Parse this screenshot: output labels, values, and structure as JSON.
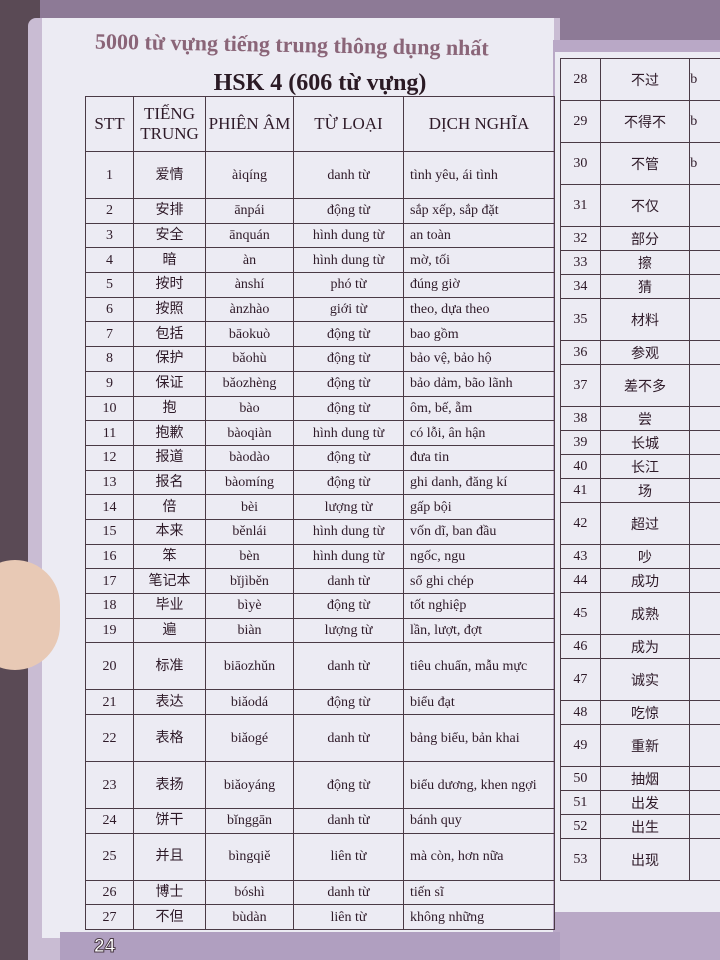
{
  "book_title": "5000 từ vựng tiếng trung thông dụng nhất",
  "section_title": "HSK 4 (606 từ vựng)",
  "headers": [
    "STT",
    "TIẾNG TRUNG",
    "PHIÊN ÂM",
    "TỪ LOẠI",
    "DỊCH NGHĨA"
  ],
  "rows": [
    [
      "1",
      "爱情",
      "àiqíng",
      "danh từ",
      "tình yêu, ái tình"
    ],
    [
      "2",
      "安排",
      "ānpái",
      "động từ",
      "sắp xếp, sắp đặt"
    ],
    [
      "3",
      "安全",
      "ānquán",
      "hình dung từ",
      "an toàn"
    ],
    [
      "4",
      "暗",
      "àn",
      "hình dung từ",
      "mờ, tối"
    ],
    [
      "5",
      "按时",
      "ànshí",
      "phó từ",
      "đúng giờ"
    ],
    [
      "6",
      "按照",
      "ànzhào",
      "giới từ",
      "theo, dựa theo"
    ],
    [
      "7",
      "包括",
      "bāokuò",
      "động từ",
      "bao gồm"
    ],
    [
      "8",
      "保护",
      "bǎohù",
      "động từ",
      "bảo vệ, bảo hộ"
    ],
    [
      "9",
      "保证",
      "bǎozhèng",
      "động từ",
      "bảo dảm, bão lãnh"
    ],
    [
      "10",
      "抱",
      "bào",
      "động từ",
      "ôm, bế, ẵm"
    ],
    [
      "11",
      "抱歉",
      "bàoqiàn",
      "hình dung từ",
      "có lỗi, ân hận"
    ],
    [
      "12",
      "报道",
      "bàodào",
      "động từ",
      "đưa tin"
    ],
    [
      "13",
      "报名",
      "bàomíng",
      "động từ",
      "ghi danh, đăng kí"
    ],
    [
      "14",
      "倍",
      "bèi",
      "lượng từ",
      "gấp bội"
    ],
    [
      "15",
      "本来",
      "běnlái",
      "hình dung từ",
      "vốn dĩ, ban đầu"
    ],
    [
      "16",
      "笨",
      "bèn",
      "hình dung từ",
      "ngốc, ngu"
    ],
    [
      "17",
      "笔记本",
      "bǐjìběn",
      "danh từ",
      "sổ ghi chép"
    ],
    [
      "18",
      "毕业",
      "bìyè",
      "động từ",
      "tốt nghiệp"
    ],
    [
      "19",
      "遍",
      "biàn",
      "lượng từ",
      "lần, lượt, đợt"
    ],
    [
      "20",
      "标准",
      "biāozhǔn",
      "danh từ",
      "tiêu chuẩn, mẫu mực"
    ],
    [
      "21",
      "表达",
      "biǎodá",
      "động từ",
      "biểu đạt"
    ],
    [
      "22",
      "表格",
      "biǎogé",
      "danh từ",
      "bảng biểu, bản khai"
    ],
    [
      "23",
      "表扬",
      "biǎoyáng",
      "động từ",
      "biểu dương, khen ngợi"
    ],
    [
      "24",
      "饼干",
      "bǐnggān",
      "danh từ",
      "bánh quy"
    ],
    [
      "25",
      "并且",
      "bìngqiě",
      "liên từ",
      "mà còn, hơn nữa"
    ],
    [
      "26",
      "博士",
      "bóshì",
      "danh từ",
      "tiến sĩ"
    ],
    [
      "27",
      "不但",
      "bùdàn",
      "liên từ",
      "không những"
    ]
  ],
  "side_rows": [
    [
      "28",
      "不过",
      "b"
    ],
    [
      "29",
      "不得不",
      "b"
    ],
    [
      "30",
      "不管",
      "b"
    ],
    [
      "31",
      "不仅",
      ""
    ],
    [
      "32",
      "部分",
      ""
    ],
    [
      "33",
      "擦",
      ""
    ],
    [
      "34",
      "猜",
      ""
    ],
    [
      "35",
      "材料",
      ""
    ],
    [
      "36",
      "参观",
      ""
    ],
    [
      "37",
      "差不多",
      ""
    ],
    [
      "38",
      "尝",
      ""
    ],
    [
      "39",
      "长城",
      ""
    ],
    [
      "40",
      "长江",
      ""
    ],
    [
      "41",
      "场",
      ""
    ],
    [
      "42",
      "超过",
      ""
    ],
    [
      "43",
      "吵",
      ""
    ],
    [
      "44",
      "成功",
      ""
    ],
    [
      "45",
      "成熟",
      ""
    ],
    [
      "46",
      "成为",
      ""
    ],
    [
      "47",
      "诚实",
      ""
    ],
    [
      "48",
      "吃惊",
      ""
    ],
    [
      "49",
      "重新",
      ""
    ],
    [
      "50",
      "抽烟",
      ""
    ],
    [
      "51",
      "出发",
      ""
    ],
    [
      "52",
      "出生",
      ""
    ],
    [
      "53",
      "出现",
      ""
    ]
  ],
  "page_number": "24"
}
